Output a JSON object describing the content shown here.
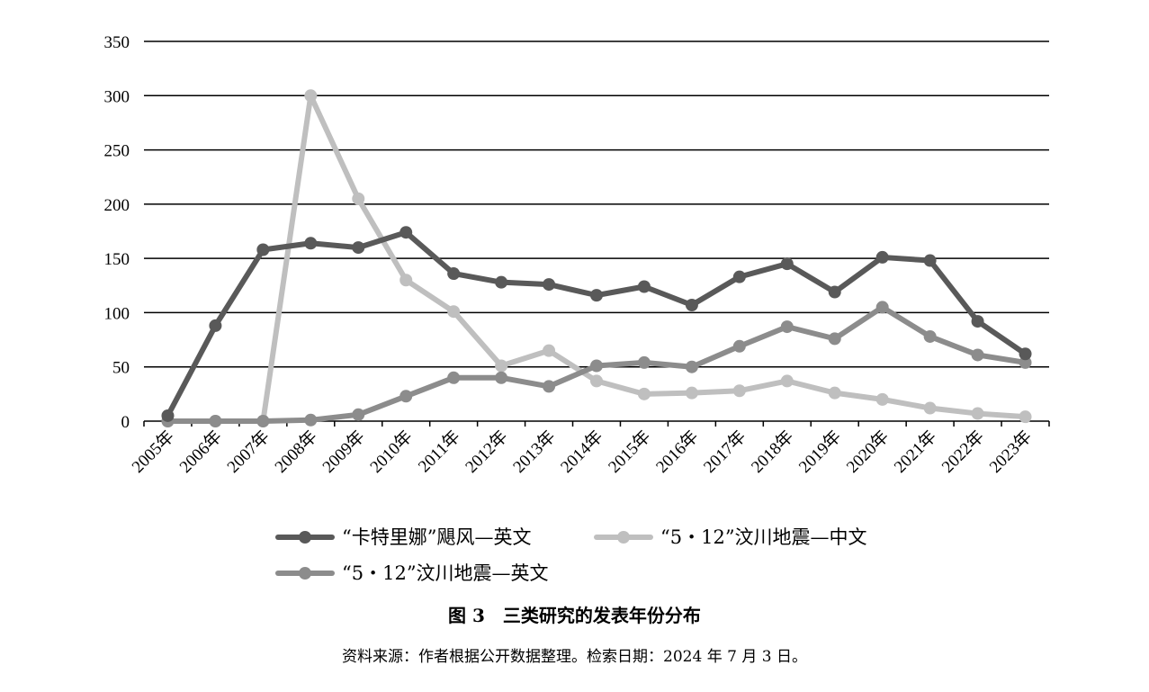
{
  "chart_data": {
    "type": "line",
    "title": "",
    "xlabel": "",
    "ylabel": "",
    "ylim": [
      0,
      350
    ],
    "yticks": [
      0,
      50,
      100,
      150,
      200,
      250,
      300,
      350
    ],
    "grid": true,
    "legend_placement": "bottom",
    "categories": [
      "2005年",
      "2006年",
      "2007年",
      "2008年",
      "2009年",
      "2010年",
      "2011年",
      "2012年",
      "2013年",
      "2014年",
      "2015年",
      "2016年",
      "2017年",
      "2018年",
      "2019年",
      "2020年",
      "2021年",
      "2022年",
      "2023年"
    ],
    "series": [
      {
        "name": "“卡特里娜”飓风—英文",
        "color": "#595959",
        "values": [
          5,
          88,
          158,
          164,
          160,
          174,
          136,
          128,
          126,
          116,
          124,
          107,
          133,
          145,
          119,
          151,
          148,
          92,
          62
        ]
      },
      {
        "name": "“5・12”汶川地震—中文",
        "color": "#bfbfbf",
        "values": [
          0,
          0,
          0,
          300,
          205,
          130,
          101,
          51,
          65,
          37,
          25,
          26,
          28,
          37,
          26,
          20,
          12,
          7,
          4
        ]
      },
      {
        "name": "“5・12”汶川地震—英文",
        "color": "#8c8c8c",
        "values": [
          0,
          0,
          0,
          1,
          6,
          23,
          40,
          40,
          32,
          51,
          54,
          50,
          69,
          87,
          76,
          105,
          78,
          61,
          54
        ]
      }
    ]
  },
  "caption": "图 3　三类研究的发表年份分布",
  "source": "资料来源：作者根据公开数据整理。检索日期：2024 年 7 月 3 日。"
}
